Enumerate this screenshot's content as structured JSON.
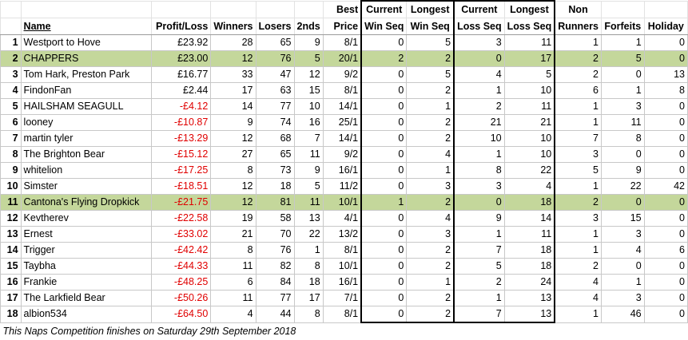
{
  "headers": {
    "rank": "",
    "name": "Name",
    "profit_loss": "Profit/Loss",
    "winners": "Winners",
    "losers": "Losers",
    "seconds": "2nds",
    "best_price_1": "Best",
    "best_price_2": "Price",
    "current_win_1": "Current",
    "current_win_2": "Win Seq",
    "longest_win_1": "Longest",
    "longest_win_2": "Win Seq",
    "current_loss_1": "Current",
    "current_loss_2": "Loss Seq",
    "longest_loss_1": "Longest",
    "longest_loss_2": "Loss Seq",
    "non_runners_1": "Non",
    "non_runners_2": "Runners",
    "forfeits": "Forfeits",
    "holiday": "Holiday"
  },
  "rows": [
    {
      "rank": "1",
      "name": "Westport to Hove",
      "pl": "£23.92",
      "w": "28",
      "l": "65",
      "s": "9",
      "bp": "8/1",
      "cws": "0",
      "lws": "5",
      "cls": "3",
      "lls": "11",
      "nr": "1",
      "f": "1",
      "h": "0",
      "neg": false,
      "highlight": false
    },
    {
      "rank": "2",
      "name": "CHAPPERS",
      "pl": "£23.00",
      "w": "12",
      "l": "76",
      "s": "5",
      "bp": "20/1",
      "cws": "2",
      "lws": "2",
      "cls": "0",
      "lls": "17",
      "nr": "2",
      "f": "5",
      "h": "0",
      "neg": false,
      "highlight": true
    },
    {
      "rank": "3",
      "name": "Tom Hark, Preston Park",
      "pl": "£16.77",
      "w": "33",
      "l": "47",
      "s": "12",
      "bp": "9/2",
      "cws": "0",
      "lws": "5",
      "cls": "4",
      "lls": "5",
      "nr": "2",
      "f": "0",
      "h": "13",
      "neg": false,
      "highlight": false
    },
    {
      "rank": "4",
      "name": "FindonFan",
      "pl": "£2.44",
      "w": "17",
      "l": "63",
      "s": "15",
      "bp": "8/1",
      "cws": "0",
      "lws": "2",
      "cls": "1",
      "lls": "10",
      "nr": "6",
      "f": "1",
      "h": "8",
      "neg": false,
      "highlight": false
    },
    {
      "rank": "5",
      "name": "HAILSHAM SEAGULL",
      "pl": "-£4.12",
      "w": "14",
      "l": "77",
      "s": "10",
      "bp": "14/1",
      "cws": "0",
      "lws": "1",
      "cls": "2",
      "lls": "11",
      "nr": "1",
      "f": "3",
      "h": "0",
      "neg": true,
      "highlight": false
    },
    {
      "rank": "6",
      "name": "looney",
      "pl": "-£10.87",
      "w": "9",
      "l": "74",
      "s": "16",
      "bp": "25/1",
      "cws": "0",
      "lws": "2",
      "cls": "21",
      "lls": "21",
      "nr": "1",
      "f": "11",
      "h": "0",
      "neg": true,
      "highlight": false
    },
    {
      "rank": "7",
      "name": "martin tyler",
      "pl": "-£13.29",
      "w": "12",
      "l": "68",
      "s": "7",
      "bp": "14/1",
      "cws": "0",
      "lws": "2",
      "cls": "10",
      "lls": "10",
      "nr": "7",
      "f": "8",
      "h": "0",
      "neg": true,
      "highlight": false
    },
    {
      "rank": "8",
      "name": "The Brighton Bear",
      "pl": "-£15.12",
      "w": "27",
      "l": "65",
      "s": "11",
      "bp": "9/2",
      "cws": "0",
      "lws": "4",
      "cls": "1",
      "lls": "10",
      "nr": "3",
      "f": "0",
      "h": "0",
      "neg": true,
      "highlight": false
    },
    {
      "rank": "9",
      "name": "whitelion",
      "pl": "-£17.25",
      "w": "8",
      "l": "73",
      "s": "9",
      "bp": "16/1",
      "cws": "0",
      "lws": "1",
      "cls": "8",
      "lls": "22",
      "nr": "5",
      "f": "9",
      "h": "0",
      "neg": true,
      "highlight": false
    },
    {
      "rank": "10",
      "name": "Simster",
      "pl": "-£18.51",
      "w": "12",
      "l": "18",
      "s": "5",
      "bp": "11/2",
      "cws": "0",
      "lws": "3",
      "cls": "3",
      "lls": "4",
      "nr": "1",
      "f": "22",
      "h": "42",
      "neg": true,
      "highlight": false
    },
    {
      "rank": "11",
      "name": "Cantona's Flying Dropkick",
      "pl": "-£21.75",
      "w": "12",
      "l": "81",
      "s": "11",
      "bp": "10/1",
      "cws": "1",
      "lws": "2",
      "cls": "0",
      "lls": "18",
      "nr": "2",
      "f": "0",
      "h": "0",
      "neg": true,
      "highlight": true
    },
    {
      "rank": "12",
      "name": "Kevtherev",
      "pl": "-£22.58",
      "w": "19",
      "l": "58",
      "s": "13",
      "bp": "4/1",
      "cws": "0",
      "lws": "4",
      "cls": "9",
      "lls": "14",
      "nr": "3",
      "f": "15",
      "h": "0",
      "neg": true,
      "highlight": false
    },
    {
      "rank": "13",
      "name": "Ernest",
      "pl": "-£33.02",
      "w": "21",
      "l": "70",
      "s": "22",
      "bp": "13/2",
      "cws": "0",
      "lws": "3",
      "cls": "1",
      "lls": "11",
      "nr": "1",
      "f": "3",
      "h": "0",
      "neg": true,
      "highlight": false
    },
    {
      "rank": "14",
      "name": "Trigger",
      "pl": "-£42.42",
      "w": "8",
      "l": "76",
      "s": "1",
      "bp": "8/1",
      "cws": "0",
      "lws": "2",
      "cls": "7",
      "lls": "18",
      "nr": "1",
      "f": "4",
      "h": "6",
      "neg": true,
      "highlight": false
    },
    {
      "rank": "15",
      "name": "Taybha",
      "pl": "-£44.33",
      "w": "11",
      "l": "82",
      "s": "8",
      "bp": "10/1",
      "cws": "0",
      "lws": "2",
      "cls": "5",
      "lls": "18",
      "nr": "2",
      "f": "0",
      "h": "0",
      "neg": true,
      "highlight": false
    },
    {
      "rank": "16",
      "name": "Frankie",
      "pl": "-£48.25",
      "w": "6",
      "l": "84",
      "s": "18",
      "bp": "16/1",
      "cws": "0",
      "lws": "1",
      "cls": "2",
      "lls": "24",
      "nr": "4",
      "f": "1",
      "h": "0",
      "neg": true,
      "highlight": false
    },
    {
      "rank": "17",
      "name": "The Larkfield Bear",
      "pl": "-£50.26",
      "w": "11",
      "l": "77",
      "s": "17",
      "bp": "7/1",
      "cws": "0",
      "lws": "2",
      "cls": "1",
      "lls": "13",
      "nr": "4",
      "f": "3",
      "h": "0",
      "neg": true,
      "highlight": false
    },
    {
      "rank": "18",
      "name": "albion534",
      "pl": "-£64.50",
      "w": "4",
      "l": "44",
      "s": "8",
      "bp": "8/1",
      "cws": "0",
      "lws": "2",
      "cls": "7",
      "lls": "13",
      "nr": "1",
      "f": "46",
      "h": "0",
      "neg": true,
      "highlight": false
    }
  ],
  "footer": "This Naps Competition finishes on Saturday 29th September 2018",
  "colors": {
    "highlight": "#c4d79b",
    "negative": "#e00000"
  }
}
